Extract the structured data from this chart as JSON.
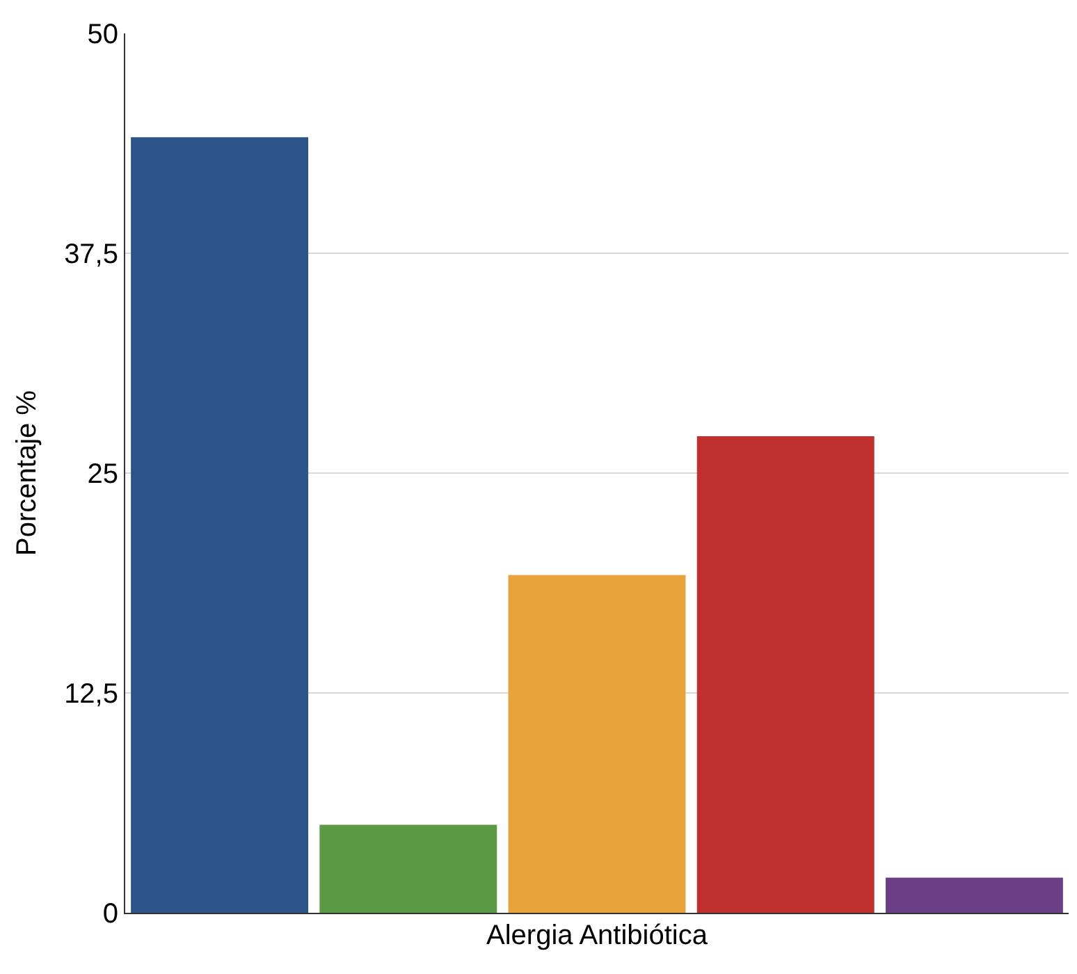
{
  "chart_data": {
    "type": "bar",
    "categories": [
      null,
      null,
      null,
      null,
      null
    ],
    "values": [
      44.1,
      5.0,
      19.2,
      27.1,
      2.0
    ],
    "colors": [
      "#2d5488",
      "#5b9a45",
      "#e8a33d",
      "#c0302e",
      "#6a3f87"
    ],
    "xlabel": "Alergia Antibiótica",
    "ylabel": "Porcentaje %",
    "ylim": [
      0,
      50
    ],
    "yticks": [
      0,
      {
        "value": 12.5,
        "label": "12,5"
      },
      25,
      {
        "value": 37.5,
        "label": "37,5"
      },
      50
    ],
    "grid": "y",
    "tick_labels": "y"
  }
}
